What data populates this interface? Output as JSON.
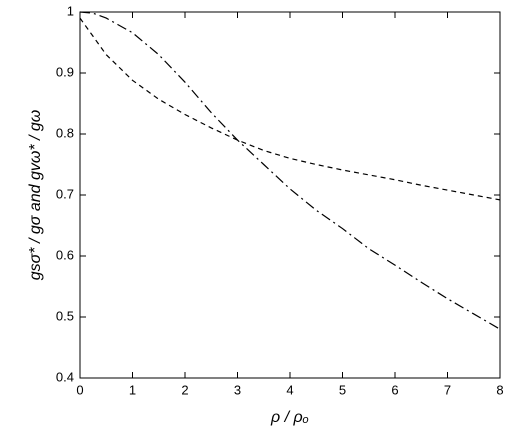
{
  "chart_data": {
    "type": "line",
    "xlabel": "ρ / ρₒ",
    "ylabel": "gsσ* / gσ     and     gvω* / gω",
    "x": [
      0,
      0.25,
      0.5,
      1,
      1.5,
      2,
      2.5,
      3,
      3.5,
      4,
      4.5,
      5,
      5.5,
      6,
      6.5,
      7,
      7.5,
      8
    ],
    "series": [
      {
        "color": "#000000",
        "dash": "dashdot",
        "values": [
          1,
          0.998,
          0.99,
          0.966,
          0.93,
          0.885,
          0.835,
          0.79,
          0.75,
          0.71,
          0.675,
          0.645,
          0.612,
          0.585,
          0.557,
          0.53,
          0.505,
          0.48
        ]
      },
      {
        "color": "#000000",
        "dash": "dashed",
        "values": [
          0.99,
          0.96,
          0.93,
          0.888,
          0.857,
          0.832,
          0.81,
          0.79,
          0.773,
          0.76,
          0.75,
          0.741,
          0.733,
          0.725,
          0.716,
          0.708,
          0.7,
          0.692
        ]
      }
    ],
    "xlim": [
      0,
      8
    ],
    "xticks": [
      0,
      1,
      2,
      3,
      4,
      5,
      6,
      7,
      8
    ],
    "ylim": [
      0.4,
      1
    ],
    "yticks": [
      0.4,
      0.5,
      0.6,
      0.7,
      0.8,
      0.9,
      1
    ],
    "grid": false
  }
}
